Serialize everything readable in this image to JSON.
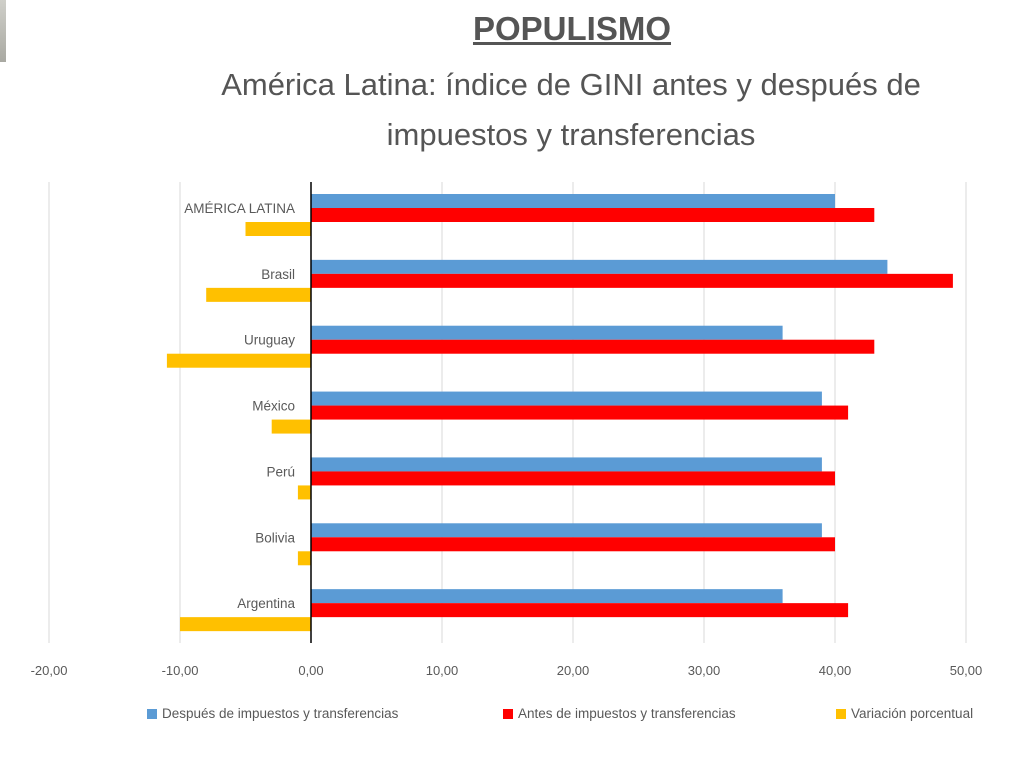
{
  "header": {
    "title": "POPULISMO",
    "subtitle": "América Latina: índice de GINI antes y después de impuestos y transferencias"
  },
  "colors": {
    "despues": "#5b9bd5",
    "antes": "#ff0000",
    "variacion": "#ffc000"
  },
  "chart_data": {
    "type": "bar",
    "orientation": "horizontal",
    "categories": [
      "AMÉRICA LATINA",
      "Brasil",
      "Uruguay",
      "México",
      "Perú",
      "Bolivia",
      "Argentina"
    ],
    "series": [
      {
        "name": "Después de impuestos y transferencias",
        "values": [
          40,
          44,
          36,
          39,
          39,
          39,
          36
        ]
      },
      {
        "name": "Antes de impuestos y transferencias",
        "values": [
          43,
          49,
          43,
          41,
          40,
          40,
          41
        ]
      },
      {
        "name": "Variación porcentual",
        "values": [
          -5,
          -8,
          -11,
          -3,
          -1,
          -1,
          -10
        ]
      }
    ],
    "xlim": [
      -20,
      50
    ],
    "xticks": [
      "-20,00",
      "-10,00",
      "0,00",
      "10,00",
      "20,00",
      "30,00",
      "40,00",
      "50,00"
    ],
    "grid": "vertical",
    "legend_position": "bottom"
  }
}
